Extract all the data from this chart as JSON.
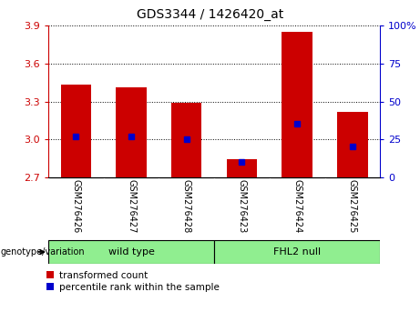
{
  "title": "GDS3344 / 1426420_at",
  "samples": [
    "GSM276426",
    "GSM276427",
    "GSM276428",
    "GSM276423",
    "GSM276424",
    "GSM276425"
  ],
  "groups": [
    "wild type",
    "wild type",
    "wild type",
    "FHL2 null",
    "FHL2 null",
    "FHL2 null"
  ],
  "group_labels": [
    "wild type",
    "FHL2 null"
  ],
  "bar_bottom": 2.7,
  "bar_tops": [
    3.43,
    3.41,
    3.29,
    2.84,
    3.85,
    3.22
  ],
  "percentile_ranks": [
    27,
    27,
    25,
    10,
    35,
    20
  ],
  "ylim_left": [
    2.7,
    3.9
  ],
  "ylim_right": [
    0,
    100
  ],
  "yticks_left": [
    2.7,
    3.0,
    3.3,
    3.6,
    3.9
  ],
  "yticks_right": [
    0,
    25,
    50,
    75,
    100
  ],
  "bar_color": "#cc0000",
  "blue_color": "#0000cc",
  "bar_width": 0.55,
  "tick_label_color_left": "#cc0000",
  "tick_label_color_right": "#0000cc",
  "bg_plot": "#ffffff",
  "bg_xlabel": "#c8c8c8",
  "green_light": "#90ee90",
  "legend_red_label": "transformed count",
  "legend_blue_label": "percentile rank within the sample",
  "genotype_label": "genotype/variation"
}
